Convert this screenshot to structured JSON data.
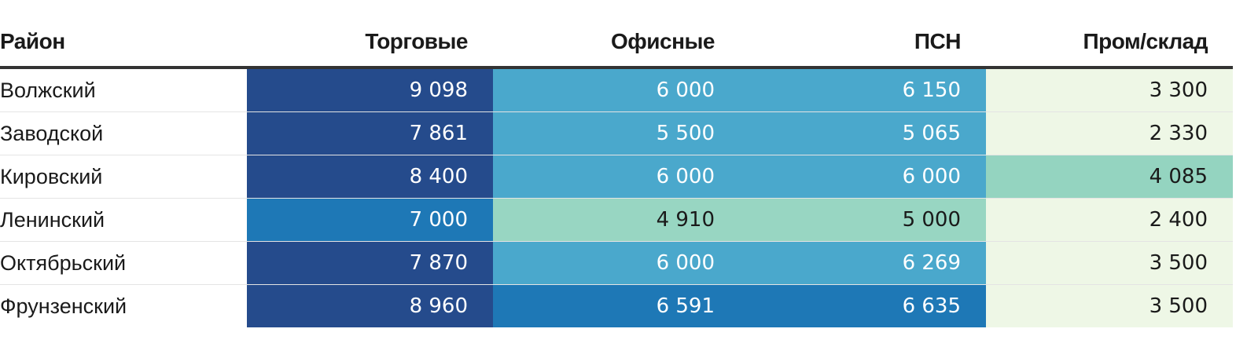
{
  "chart_data": {
    "type": "table",
    "columns": [
      "Район",
      "Торговые",
      "Офисные",
      "ПСН",
      "Пром/склад"
    ],
    "rows": [
      {
        "district": "Волжский",
        "values": [
          "9 098",
          "6 000",
          "6 150",
          "3 300"
        ]
      },
      {
        "district": "Заводской",
        "values": [
          "7 861",
          "5 500",
          "5 065",
          "2 330"
        ]
      },
      {
        "district": "Кировский",
        "values": [
          "8 400",
          "6 000",
          "6 000",
          "4 085"
        ]
      },
      {
        "district": "Ленинский",
        "values": [
          "7 000",
          "4 910",
          "5 000",
          "2 400"
        ]
      },
      {
        "district": "Октябрьский",
        "values": [
          "7 870",
          "6 000",
          "6 269",
          "3 500"
        ]
      },
      {
        "district": "Фрунзенский",
        "values": [
          "8 960",
          "6 591",
          "6 635",
          "3 500"
        ]
      }
    ],
    "cell_colors": [
      [
        "#254b8c",
        "#4aa8cc",
        "#4aa8cc",
        "#eef7e6"
      ],
      [
        "#254b8c",
        "#4aa8cc",
        "#4aa8cc",
        "#eef7e6"
      ],
      [
        "#254b8c",
        "#4aa8cc",
        "#4aa8cc",
        "#94d4c0"
      ],
      [
        "#1e78b6",
        "#98d6c2",
        "#98d6c2",
        "#eef7e6"
      ],
      [
        "#254b8c",
        "#4aa8cc",
        "#4aa8cc",
        "#eef7e6"
      ],
      [
        "#254b8c",
        "#1e78b6",
        "#1e78b6",
        "#eef7e6"
      ]
    ]
  }
}
